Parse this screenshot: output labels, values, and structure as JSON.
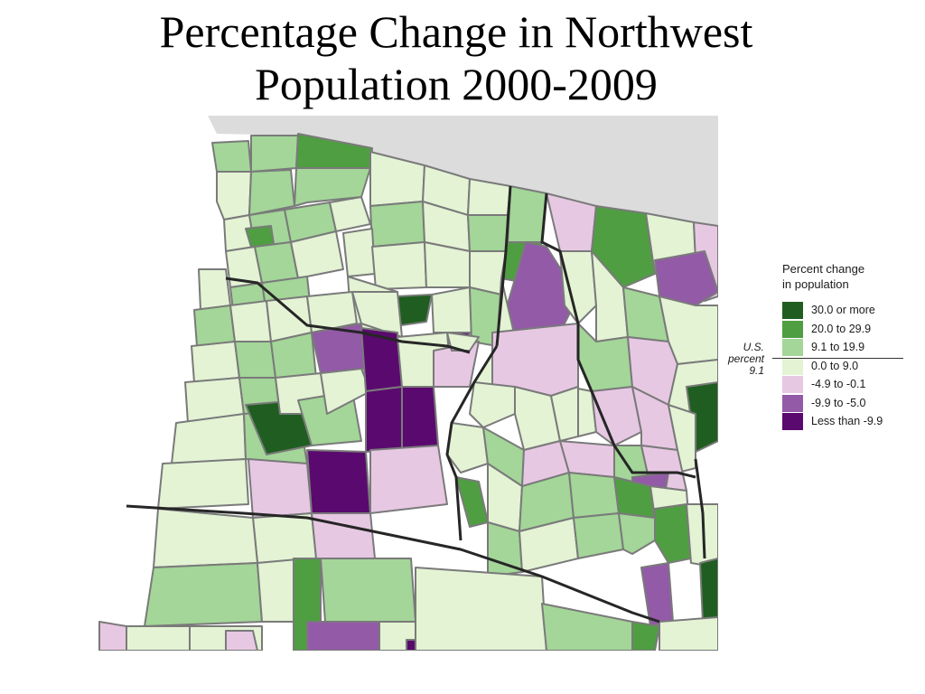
{
  "title": {
    "line1": "Percentage Change in Northwest",
    "line2": "Population 2000-2009"
  },
  "legend": {
    "title_line1": "Percent change",
    "title_line2": "in population",
    "items": [
      {
        "label": "30.0 or more",
        "color": "#1f5e20"
      },
      {
        "label": "20.0 to 29.9",
        "color": "#4f9e42"
      },
      {
        "label": "9.1 to 19.9",
        "color": "#a3d698"
      },
      {
        "label": "0.0 to 9.0",
        "color": "#e3f3d4"
      },
      {
        "label": "-4.9 to -0.1",
        "color": "#e7c8e3"
      },
      {
        "label": "-9.9 to -5.0",
        "color": "#935aa8"
      },
      {
        "label": "Less than -9.9",
        "color": "#5a0a6e"
      }
    ],
    "us_note": {
      "line1": "U.S.",
      "line2": "percent",
      "line3": "9.1"
    }
  },
  "colors": {
    "water": "#dcdcdc",
    "county_border": "#7a7a7a",
    "state_border": "#262626"
  }
}
